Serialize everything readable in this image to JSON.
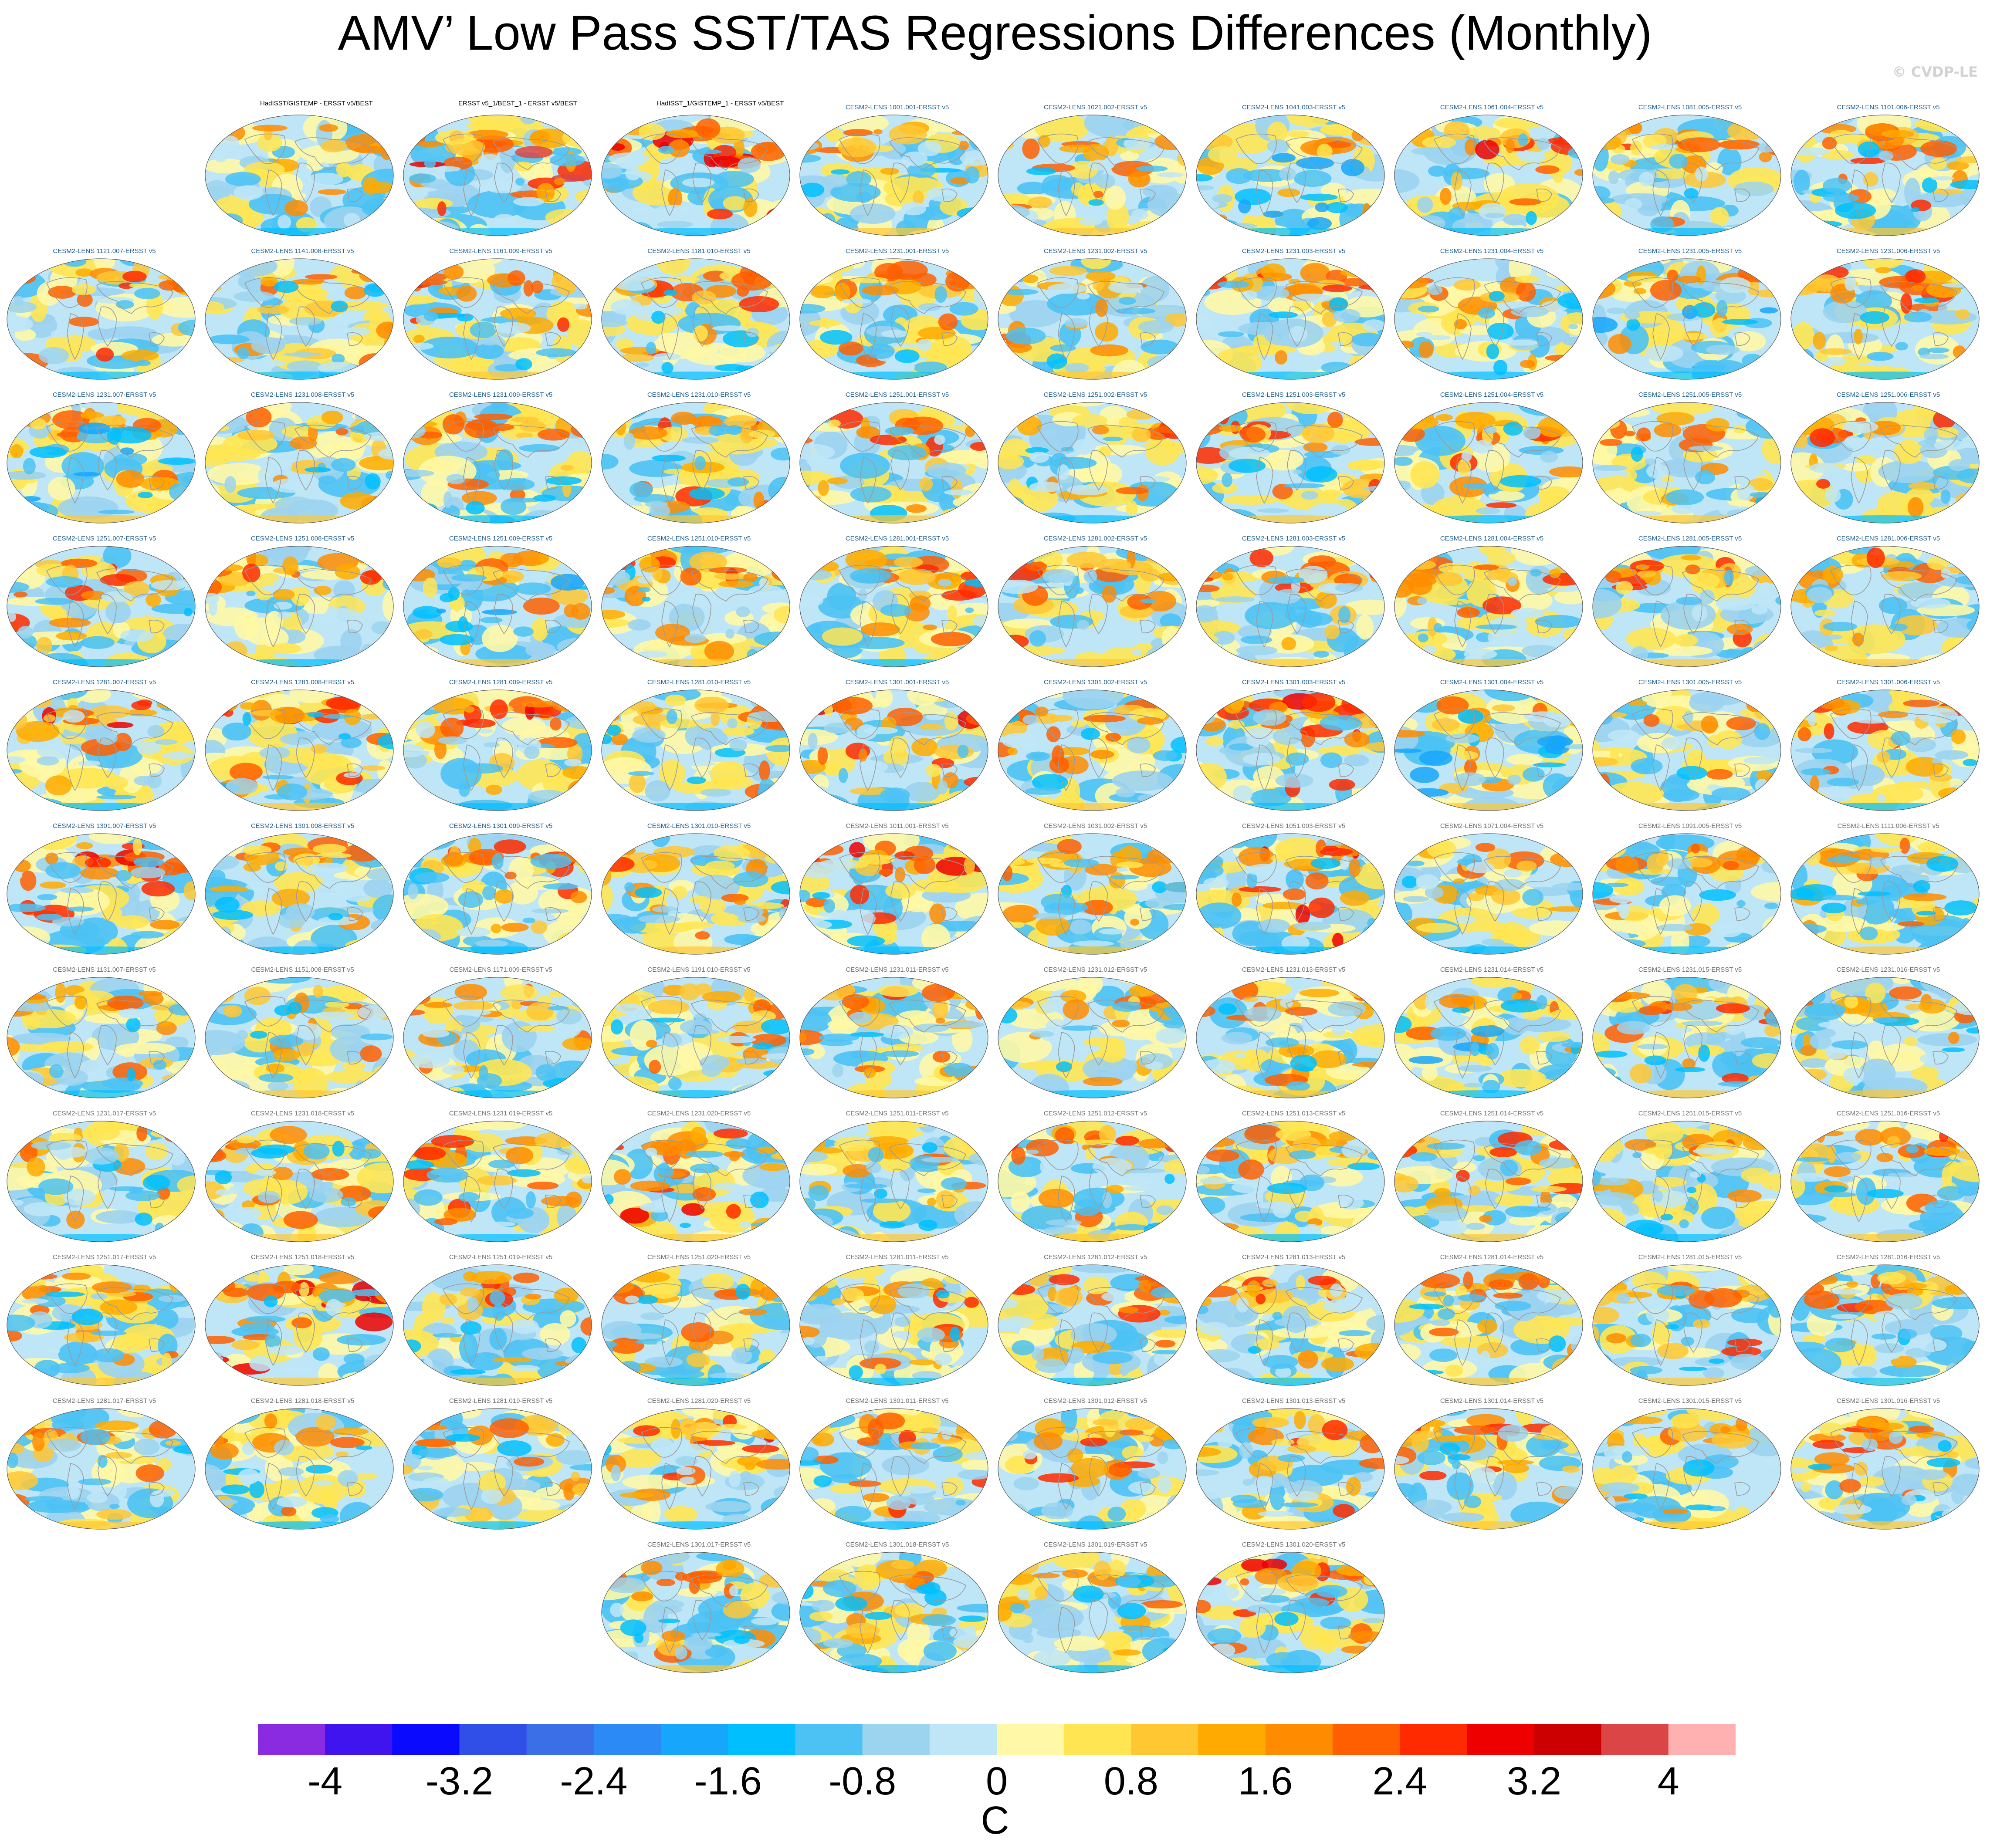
{
  "title": "AMV’ Low Pass SST/TAS Regressions Differences (Monthly)",
  "watermark": "© CVDP-LE",
  "colors": {
    "land": "#c8c8c8",
    "coast": "#9a9a9a",
    "outline": "#555555",
    "obs_title": "#000000",
    "model_title": "#1f5f8f",
    "model_title_gray": "#6f6f6f"
  },
  "colorbar": {
    "units": "C",
    "tick_labels": [
      "-4",
      "-3.2",
      "-2.4",
      "-1.6",
      "-0.8",
      "0",
      "0.8",
      "1.6",
      "2.4",
      "3.2",
      "4"
    ],
    "colors": [
      "#8a2be2",
      "#3f14ee",
      "#0a0aff",
      "#2f4fe8",
      "#3a6fe8",
      "#2b8af5",
      "#16a6fb",
      "#00bfff",
      "#4cc2f4",
      "#9cd3ef",
      "#bfe6f7",
      "#fff8a6",
      "#ffe552",
      "#ffc732",
      "#ffaa00",
      "#ff8c00",
      "#ff5f00",
      "#ff2a00",
      "#ee0000",
      "#cc0000",
      "#db4545",
      "#ffb0b0"
    ]
  },
  "panels": [
    {
      "title": "HadISST/GISTEMP - ERSST v5/BEST",
      "kind": "obs",
      "warm": 0.3,
      "cool": 0.3,
      "seed": 1
    },
    {
      "title": "ERSST v5_1/BEST_1 - ERSST v5/BEST",
      "kind": "obs",
      "warm": 0.9,
      "cool": 0.2,
      "seed": 2
    },
    {
      "title": "HadISST_1/GISTEMP_1 - ERSST v5/BEST",
      "kind": "obs",
      "warm": 0.8,
      "cool": 0.3,
      "seed": 3
    },
    {
      "title": "CESM2-LENS 1001.001-ERSST v5",
      "kind": "m1",
      "warm": 0.5,
      "cool": 0.5,
      "seed": 4
    },
    {
      "title": "CESM2-LENS 1021.002-ERSST v5",
      "kind": "m1",
      "warm": 0.5,
      "cool": 0.4,
      "seed": 5
    },
    {
      "title": "CESM2-LENS 1041.003-ERSST v5",
      "kind": "m1",
      "warm": 0.4,
      "cool": 0.7,
      "seed": 6
    },
    {
      "title": "CESM2-LENS 1061.004-ERSST v5",
      "kind": "m1",
      "warm": 0.7,
      "cool": 0.3,
      "seed": 7
    },
    {
      "title": "CESM2-LENS 1081.005-ERSST v5",
      "kind": "m1",
      "warm": 0.6,
      "cool": 0.3,
      "seed": 8
    },
    {
      "title": "CESM2-LENS 1101.006-ERSST v5",
      "kind": "m1",
      "warm": 0.6,
      "cool": 0.4,
      "seed": 9
    },
    {
      "title": "CESM2-LENS 1121.007-ERSST v5",
      "kind": "m1",
      "warm": 0.6,
      "cool": 0.3,
      "seed": 10
    },
    {
      "title": "CESM2-LENS 1141.008-ERSST v5",
      "kind": "m1",
      "warm": 0.5,
      "cool": 0.4,
      "seed": 11
    },
    {
      "title": "CESM2-LENS 1161.009-ERSST v5",
      "kind": "m1",
      "warm": 0.6,
      "cool": 0.4,
      "seed": 12
    },
    {
      "title": "CESM2-LENS 1181.010-ERSST v5",
      "kind": "m1",
      "warm": 0.6,
      "cool": 0.5,
      "seed": 13
    },
    {
      "title": "CESM2-LENS 1231.001-ERSST v5",
      "kind": "m1",
      "warm": 0.5,
      "cool": 0.4,
      "seed": 14
    },
    {
      "title": "CESM2-LENS 1231.002-ERSST v5",
      "kind": "m1",
      "warm": 0.5,
      "cool": 0.4,
      "seed": 15
    },
    {
      "title": "CESM2-LENS 1231.003-ERSST v5",
      "kind": "m1",
      "warm": 0.6,
      "cool": 0.4,
      "seed": 16
    },
    {
      "title": "CESM2-LENS 1231.004-ERSST v5",
      "kind": "m1",
      "warm": 0.5,
      "cool": 0.4,
      "seed": 17
    },
    {
      "title": "CESM2-LENS 1231.005-ERSST v5",
      "kind": "m1",
      "warm": 0.4,
      "cool": 0.6,
      "seed": 18
    },
    {
      "title": "CESM2-LENS 1231.006-ERSST v5",
      "kind": "m1",
      "warm": 0.6,
      "cool": 0.4,
      "seed": 19
    },
    {
      "title": "CESM2-LENS 1231.007-ERSST v5",
      "kind": "m1",
      "warm": 0.5,
      "cool": 0.6,
      "seed": 20
    },
    {
      "title": "CESM2-LENS 1231.008-ERSST v5",
      "kind": "m1",
      "warm": 0.5,
      "cool": 0.4,
      "seed": 21
    },
    {
      "title": "CESM2-LENS 1231.009-ERSST v5",
      "kind": "m1",
      "warm": 0.5,
      "cool": 0.4,
      "seed": 22
    },
    {
      "title": "CESM2-LENS 1231.010-ERSST v5",
      "kind": "m1",
      "warm": 0.6,
      "cool": 0.4,
      "seed": 23
    },
    {
      "title": "CESM2-LENS 1251.001-ERSST v5",
      "kind": "m1",
      "warm": 0.6,
      "cool": 0.3,
      "seed": 24
    },
    {
      "title": "CESM2-LENS 1251.002-ERSST v5",
      "kind": "m1",
      "warm": 0.6,
      "cool": 0.4,
      "seed": 25
    },
    {
      "title": "CESM2-LENS 1251.003-ERSST v5",
      "kind": "m1",
      "warm": 0.6,
      "cool": 0.4,
      "seed": 26
    },
    {
      "title": "CESM2-LENS 1251.004-ERSST v5",
      "kind": "m1",
      "warm": 0.6,
      "cool": 0.3,
      "seed": 27
    },
    {
      "title": "CESM2-LENS 1251.005-ERSST v5",
      "kind": "m1",
      "warm": 0.5,
      "cool": 0.4,
      "seed": 28
    },
    {
      "title": "CESM2-LENS 1251.006-ERSST v5",
      "kind": "m1",
      "warm": 0.6,
      "cool": 0.3,
      "seed": 29
    },
    {
      "title": "CESM2-LENS 1251.007-ERSST v5",
      "kind": "m1",
      "warm": 0.6,
      "cool": 0.3,
      "seed": 30
    },
    {
      "title": "CESM2-LENS 1251.008-ERSST v5",
      "kind": "m1",
      "warm": 0.6,
      "cool": 0.3,
      "seed": 31
    },
    {
      "title": "CESM2-LENS 1251.009-ERSST v5",
      "kind": "m1",
      "warm": 0.4,
      "cool": 0.6,
      "seed": 32
    },
    {
      "title": "CESM2-LENS 1251.010-ERSST v5",
      "kind": "m1",
      "warm": 0.6,
      "cool": 0.4,
      "seed": 33
    },
    {
      "title": "CESM2-LENS 1281.001-ERSST v5",
      "kind": "m1",
      "warm": 0.6,
      "cool": 0.3,
      "seed": 34
    },
    {
      "title": "CESM2-LENS 1281.002-ERSST v5",
      "kind": "m1",
      "warm": 0.6,
      "cool": 0.3,
      "seed": 35
    },
    {
      "title": "CESM2-LENS 1281.003-ERSST v5",
      "kind": "m1",
      "warm": 0.6,
      "cool": 0.3,
      "seed": 36
    },
    {
      "title": "CESM2-LENS 1281.004-ERSST v5",
      "kind": "m1",
      "warm": 0.6,
      "cool": 0.3,
      "seed": 37
    },
    {
      "title": "CESM2-LENS 1281.005-ERSST v5",
      "kind": "m1",
      "warm": 0.6,
      "cool": 0.3,
      "seed": 38
    },
    {
      "title": "CESM2-LENS 1281.006-ERSST v5",
      "kind": "m1",
      "warm": 0.6,
      "cool": 0.3,
      "seed": 39
    },
    {
      "title": "CESM2-LENS 1281.007-ERSST v5",
      "kind": "m1",
      "warm": 0.7,
      "cool": 0.3,
      "seed": 40
    },
    {
      "title": "CESM2-LENS 1281.008-ERSST v5",
      "kind": "m1",
      "warm": 0.7,
      "cool": 0.4,
      "seed": 41
    },
    {
      "title": "CESM2-LENS 1281.009-ERSST v5",
      "kind": "m1",
      "warm": 0.7,
      "cool": 0.4,
      "seed": 42
    },
    {
      "title": "CESM2-LENS 1281.010-ERSST v5",
      "kind": "m1",
      "warm": 0.5,
      "cool": 0.4,
      "seed": 43
    },
    {
      "title": "CESM2-LENS 1301.001-ERSST v5",
      "kind": "m1",
      "warm": 0.7,
      "cool": 0.3,
      "seed": 44
    },
    {
      "title": "CESM2-LENS 1301.002-ERSST v5",
      "kind": "m1",
      "warm": 0.5,
      "cool": 0.4,
      "seed": 45
    },
    {
      "title": "CESM2-LENS 1301.003-ERSST v5",
      "kind": "m1",
      "warm": 0.7,
      "cool": 0.3,
      "seed": 46
    },
    {
      "title": "CESM2-LENS 1301.004-ERSST v5",
      "kind": "m1",
      "warm": 0.4,
      "cool": 0.7,
      "seed": 47
    },
    {
      "title": "CESM2-LENS 1301.005-ERSST v5",
      "kind": "m1",
      "warm": 0.5,
      "cool": 0.4,
      "seed": 48
    },
    {
      "title": "CESM2-LENS 1301.006-ERSST v5",
      "kind": "m1",
      "warm": 0.6,
      "cool": 0.3,
      "seed": 49
    },
    {
      "title": "CESM2-LENS 1301.007-ERSST v5",
      "kind": "m1",
      "warm": 0.7,
      "cool": 0.3,
      "seed": 50
    },
    {
      "title": "CESM2-LENS 1301.008-ERSST v5",
      "kind": "m1",
      "warm": 0.5,
      "cool": 0.5,
      "seed": 51
    },
    {
      "title": "CESM2-LENS 1301.009-ERSST v5",
      "kind": "m1",
      "warm": 0.6,
      "cool": 0.3,
      "seed": 52
    },
    {
      "title": "CESM2-LENS 1301.010-ERSST v5",
      "kind": "m1",
      "warm": 0.6,
      "cool": 0.4,
      "seed": 53
    },
    {
      "title": "CESM2-LENS 1011.001-ERSST v5",
      "kind": "m2",
      "warm": 0.8,
      "cool": 0.3,
      "seed": 54
    },
    {
      "title": "CESM2-LENS 1031.002-ERSST v5",
      "kind": "m2",
      "warm": 0.5,
      "cool": 0.5,
      "seed": 55
    },
    {
      "title": "CESM2-LENS 1051.003-ERSST v5",
      "kind": "m2",
      "warm": 0.7,
      "cool": 0.3,
      "seed": 56
    },
    {
      "title": "CESM2-LENS 1071.004-ERSST v5",
      "kind": "m2",
      "warm": 0.5,
      "cool": 0.4,
      "seed": 57
    },
    {
      "title": "CESM2-LENS 1091.005-ERSST v5",
      "kind": "m2",
      "warm": 0.5,
      "cool": 0.5,
      "seed": 58
    },
    {
      "title": "CESM2-LENS 1111.006-ERSST v5",
      "kind": "m2",
      "warm": 0.5,
      "cool": 0.5,
      "seed": 59
    },
    {
      "title": "CESM2-LENS 1131.007-ERSST v5",
      "kind": "m2",
      "warm": 0.5,
      "cool": 0.4,
      "seed": 60
    },
    {
      "title": "CESM2-LENS 1151.008-ERSST v5",
      "kind": "m2",
      "warm": 0.5,
      "cool": 0.4,
      "seed": 61
    },
    {
      "title": "CESM2-LENS 1171.009-ERSST v5",
      "kind": "m2",
      "warm": 0.5,
      "cool": 0.4,
      "seed": 62
    },
    {
      "title": "CESM2-LENS 1191.010-ERSST v5",
      "kind": "m2",
      "warm": 0.5,
      "cool": 0.5,
      "seed": 63
    },
    {
      "title": "CESM2-LENS 1231.011-ERSST v5",
      "kind": "m2",
      "warm": 0.6,
      "cool": 0.3,
      "seed": 64
    },
    {
      "title": "CESM2-LENS 1231.012-ERSST v5",
      "kind": "m2",
      "warm": 0.4,
      "cool": 0.5,
      "seed": 65
    },
    {
      "title": "CESM2-LENS 1231.013-ERSST v5",
      "kind": "m2",
      "warm": 0.5,
      "cool": 0.4,
      "seed": 66
    },
    {
      "title": "CESM2-LENS 1231.014-ERSST v5",
      "kind": "m2",
      "warm": 0.4,
      "cool": 0.6,
      "seed": 67
    },
    {
      "title": "CESM2-LENS 1231.015-ERSST v5",
      "kind": "m2",
      "warm": 0.6,
      "cool": 0.4,
      "seed": 68
    },
    {
      "title": "CESM2-LENS 1231.016-ERSST v5",
      "kind": "m2",
      "warm": 0.5,
      "cool": 0.4,
      "seed": 69
    },
    {
      "title": "CESM2-LENS 1231.017-ERSST v5",
      "kind": "m2",
      "warm": 0.5,
      "cool": 0.5,
      "seed": 70
    },
    {
      "title": "CESM2-LENS 1231.018-ERSST v5",
      "kind": "m2",
      "warm": 0.5,
      "cool": 0.4,
      "seed": 71
    },
    {
      "title": "CESM2-LENS 1231.019-ERSST v5",
      "kind": "m2",
      "warm": 0.6,
      "cool": 0.4,
      "seed": 72
    },
    {
      "title": "CESM2-LENS 1231.020-ERSST v5",
      "kind": "m2",
      "warm": 0.7,
      "cool": 0.3,
      "seed": 73
    },
    {
      "title": "CESM2-LENS 1251.011-ERSST v5",
      "kind": "m2",
      "warm": 0.4,
      "cool": 0.5,
      "seed": 74
    },
    {
      "title": "CESM2-LENS 1251.012-ERSST v5",
      "kind": "m2",
      "warm": 0.6,
      "cool": 0.3,
      "seed": 75
    },
    {
      "title": "CESM2-LENS 1251.013-ERSST v5",
      "kind": "m2",
      "warm": 0.5,
      "cool": 0.5,
      "seed": 76
    },
    {
      "title": "CESM2-LENS 1251.014-ERSST v5",
      "kind": "m2",
      "warm": 0.6,
      "cool": 0.3,
      "seed": 77
    },
    {
      "title": "CESM2-LENS 1251.015-ERSST v5",
      "kind": "m2",
      "warm": 0.5,
      "cool": 0.4,
      "seed": 78
    },
    {
      "title": "CESM2-LENS 1251.016-ERSST v5",
      "kind": "m2",
      "warm": 0.6,
      "cool": 0.4,
      "seed": 79
    },
    {
      "title": "CESM2-LENS 1251.017-ERSST v5",
      "kind": "m2",
      "warm": 0.5,
      "cool": 0.4,
      "seed": 80
    },
    {
      "title": "CESM2-LENS 1251.018-ERSST v5",
      "kind": "m2",
      "warm": 0.8,
      "cool": 0.3,
      "seed": 81
    },
    {
      "title": "CESM2-LENS 1251.019-ERSST v5",
      "kind": "m2",
      "warm": 0.6,
      "cool": 0.5,
      "seed": 82
    },
    {
      "title": "CESM2-LENS 1251.020-ERSST v5",
      "kind": "m2",
      "warm": 0.5,
      "cool": 0.5,
      "seed": 83
    },
    {
      "title": "CESM2-LENS 1281.011-ERSST v5",
      "kind": "m2",
      "warm": 0.6,
      "cool": 0.4,
      "seed": 84
    },
    {
      "title": "CESM2-LENS 1281.012-ERSST v5",
      "kind": "m2",
      "warm": 0.6,
      "cool": 0.3,
      "seed": 85
    },
    {
      "title": "CESM2-LENS 1281.013-ERSST v5",
      "kind": "m2",
      "warm": 0.6,
      "cool": 0.4,
      "seed": 86
    },
    {
      "title": "CESM2-LENS 1281.014-ERSST v5",
      "kind": "m2",
      "warm": 0.5,
      "cool": 0.4,
      "seed": 87
    },
    {
      "title": "CESM2-LENS 1281.015-ERSST v5",
      "kind": "m2",
      "warm": 0.6,
      "cool": 0.4,
      "seed": 88
    },
    {
      "title": "CESM2-LENS 1281.016-ERSST v5",
      "kind": "m2",
      "warm": 0.6,
      "cool": 0.4,
      "seed": 89
    },
    {
      "title": "CESM2-LENS 1281.017-ERSST v5",
      "kind": "m2",
      "warm": 0.5,
      "cool": 0.4,
      "seed": 90
    },
    {
      "title": "CESM2-LENS 1281.018-ERSST v5",
      "kind": "m2",
      "warm": 0.4,
      "cool": 0.5,
      "seed": 91
    },
    {
      "title": "CESM2-LENS 1281.019-ERSST v5",
      "kind": "m2",
      "warm": 0.5,
      "cool": 0.4,
      "seed": 92
    },
    {
      "title": "CESM2-LENS 1281.020-ERSST v5",
      "kind": "m2",
      "warm": 0.7,
      "cool": 0.3,
      "seed": 93
    },
    {
      "title": "CESM2-LENS 1301.011-ERSST v5",
      "kind": "m2",
      "warm": 0.7,
      "cool": 0.3,
      "seed": 94
    },
    {
      "title": "CESM2-LENS 1301.012-ERSST v5",
      "kind": "m2",
      "warm": 0.6,
      "cool": 0.3,
      "seed": 95
    },
    {
      "title": "CESM2-LENS 1301.013-ERSST v5",
      "kind": "m2",
      "warm": 0.6,
      "cool": 0.3,
      "seed": 96
    },
    {
      "title": "CESM2-LENS 1301.014-ERSST v5",
      "kind": "m2",
      "warm": 0.6,
      "cool": 0.4,
      "seed": 97
    },
    {
      "title": "CESM2-LENS 1301.015-ERSST v5",
      "kind": "m2",
      "warm": 0.5,
      "cool": 0.4,
      "seed": 98
    },
    {
      "title": "CESM2-LENS 1301.016-ERSST v5",
      "kind": "m2",
      "warm": 0.6,
      "cool": 0.5,
      "seed": 99
    },
    {
      "title": "CESM2-LENS 1301.017-ERSST v5",
      "kind": "m2",
      "warm": 0.5,
      "cool": 0.5,
      "seed": 100
    },
    {
      "title": "CESM2-LENS 1301.018-ERSST v5",
      "kind": "m2",
      "warm": 0.5,
      "cool": 0.5,
      "seed": 101
    },
    {
      "title": "CESM2-LENS 1301.019-ERSST v5",
      "kind": "m2",
      "warm": 0.4,
      "cool": 0.5,
      "seed": 102
    },
    {
      "title": "CESM2-LENS 1301.020-ERSST v5",
      "kind": "m2",
      "warm": 0.7,
      "cool": 0.3,
      "seed": 103
    }
  ]
}
